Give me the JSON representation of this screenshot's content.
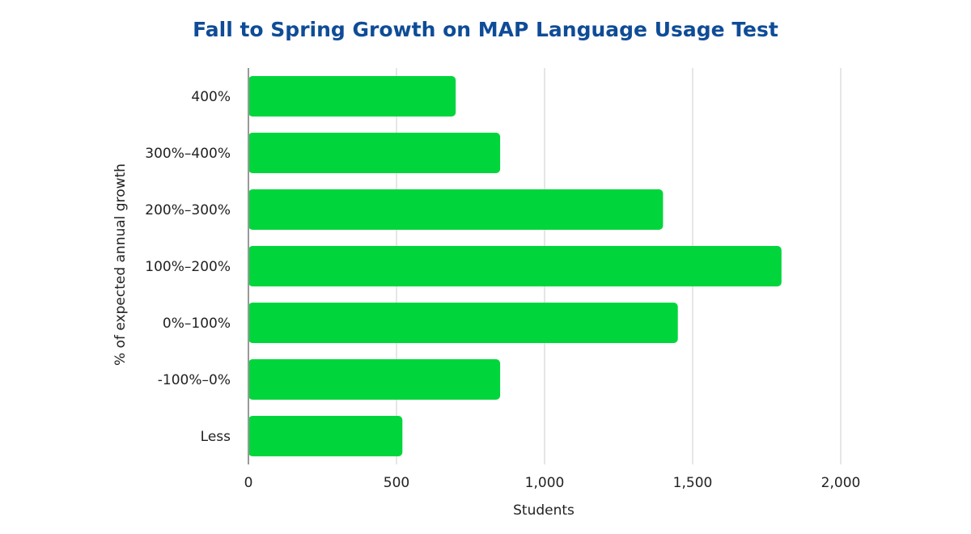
{
  "chart_data": {
    "type": "bar",
    "orientation": "horizontal",
    "title": "Fall to Spring Growth on MAP Language Usage Test",
    "xlabel": "Students",
    "ylabel": "% of expected annual growth",
    "categories": [
      "400%",
      "300%–400%",
      "200%–300%",
      "100%–200%",
      "0%–100%",
      "-100%–0%",
      "Less"
    ],
    "values": [
      700,
      850,
      1400,
      1800,
      1450,
      850,
      520
    ],
    "xlim": [
      0,
      2000
    ],
    "xticks": [
      0,
      500,
      1000,
      1500,
      2000
    ],
    "xtick_labels": [
      "0",
      "500",
      "1,000",
      "1,500",
      "2,000"
    ],
    "grid": "vertical",
    "legend": "none",
    "colors": {
      "bar": "#00d63c",
      "title": "#0f4c97",
      "grid": "#cccccc",
      "axis": "#999999",
      "text": "#222222"
    }
  }
}
